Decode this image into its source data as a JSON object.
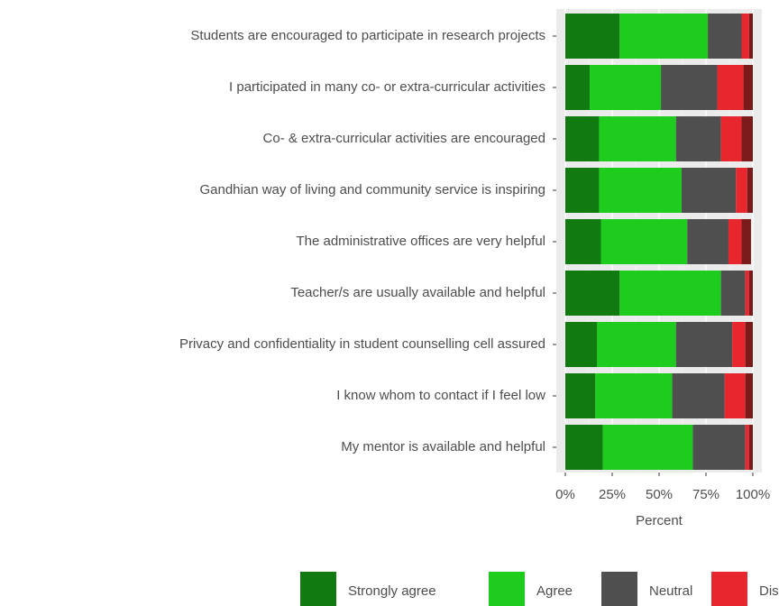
{
  "chart_data": {
    "type": "stacked_barh",
    "categories": [
      "Students are encouraged to participate in research projects",
      "I participated in many co- or extra-curricular activities",
      "Co- & extra-curricular activities are encouraged",
      "Gandhian way of living and community service is inspiring",
      "The administrative offices are very helpful",
      "Teacher/s are usually available and helpful",
      "Privacy and confidentiality in student counselling cell assured",
      "I know whom to contact if I feel low",
      "My mentor is available and helpful"
    ],
    "series": [
      {
        "name": "Strongly agree",
        "color": "#117a11",
        "values": [
          29,
          13,
          18,
          18,
          19,
          29,
          17,
          16,
          20
        ]
      },
      {
        "name": "Agree",
        "color": "#1ecc1e",
        "values": [
          47,
          38,
          41,
          44,
          46,
          54,
          42,
          41,
          48
        ]
      },
      {
        "name": "Neutral",
        "color": "#4f4f4f",
        "values": [
          18,
          30,
          24,
          29,
          22,
          13,
          30,
          28,
          28
        ]
      },
      {
        "name": "Disagree",
        "color": "#e8262e",
        "values": [
          4,
          14,
          11,
          6,
          7,
          2,
          7,
          11,
          2
        ]
      },
      {
        "color": "#7a1a1a",
        "values": [
          2,
          5,
          6,
          3,
          5,
          2,
          4,
          4,
          2
        ]
      }
    ],
    "xlabel": "Percent",
    "xlim": [
      0,
      100
    ],
    "xticks": [
      {
        "value": 0,
        "label": "0%"
      },
      {
        "value": 25,
        "label": "25%"
      },
      {
        "value": 50,
        "label": "50%"
      },
      {
        "value": 75,
        "label": "75%"
      },
      {
        "value": 100,
        "label": "100%"
      }
    ],
    "grid": true
  }
}
